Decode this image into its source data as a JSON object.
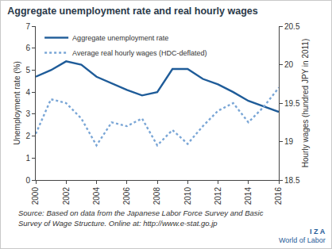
{
  "chart_data": {
    "type": "line",
    "title": "Aggregate unemployment rate and real hourly wages",
    "x": [
      2000,
      2001,
      2002,
      2003,
      2004,
      2005,
      2006,
      2007,
      2008,
      2009,
      2010,
      2011,
      2012,
      2013,
      2014,
      2015,
      2016
    ],
    "series": [
      {
        "name": "Aggregate unemployment rate",
        "color": "#1f5c99",
        "line_style": "solid",
        "axis": "y",
        "values": [
          4.7,
          5.0,
          5.4,
          5.25,
          4.7,
          4.4,
          4.1,
          3.85,
          4.0,
          5.05,
          5.05,
          4.6,
          4.35,
          4.0,
          3.6,
          3.35,
          3.1
        ]
      },
      {
        "name": "Average real hourly wages (HDC-deflated)",
        "color": "#7aa6d6",
        "line_style": "dot",
        "axis": "y2",
        "values": [
          19.1,
          19.55,
          19.5,
          19.3,
          18.95,
          19.25,
          19.2,
          19.3,
          18.95,
          19.15,
          18.97,
          19.2,
          19.4,
          19.5,
          19.25,
          19.45,
          19.7
        ]
      }
    ],
    "xlim": [
      2000,
      2016
    ],
    "xticks": [
      2000,
      2002,
      2004,
      2006,
      2008,
      2010,
      2012,
      2014,
      2016
    ],
    "ylabel": "Unemployment rate (%)",
    "ylim": [
      0,
      7
    ],
    "yticks": [
      0,
      1,
      2,
      3,
      4,
      5,
      6,
      7
    ],
    "y2label": "Hourly wages (hundred JPY in 2011)",
    "y2lim": [
      18.5,
      20.5
    ],
    "y2ticks": [
      18.5,
      19,
      19.5,
      20,
      20.5
    ],
    "grid": false,
    "legend": "top left",
    "source": [
      "Source: Based on data from the Japanese Labor Force Survey and Basic",
      "Survey of Wage Structure. Online at: http://www.e-stat.go.jp"
    ],
    "logo": [
      "I Z A",
      "World of Labor"
    ]
  }
}
